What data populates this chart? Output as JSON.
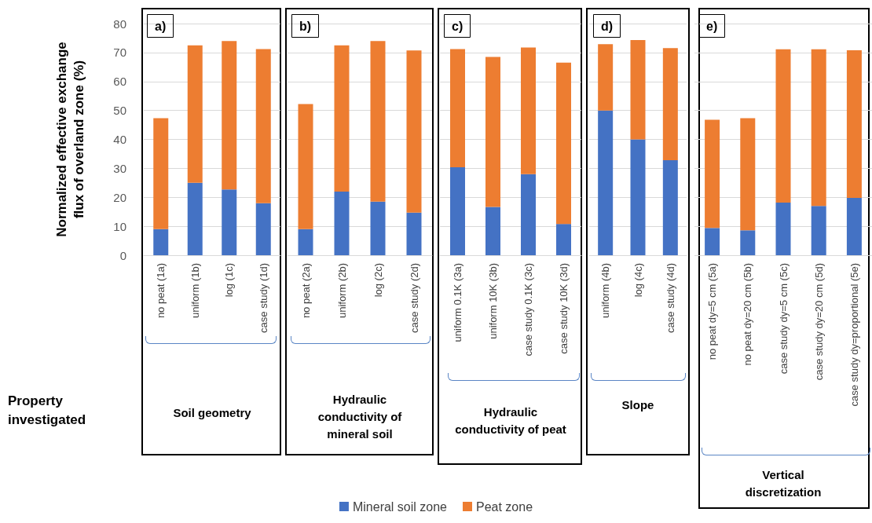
{
  "chart_data": [
    {
      "type": "bar",
      "title": "a)",
      "xlabel": "Soil geometry",
      "ylabel": "Normalized effective exchange flux of overland zone (%)",
      "categories": [
        "no peat (1a)",
        "uniform (1b)",
        "log (1c)",
        "case study (1d)"
      ],
      "stacked": true,
      "ylim": [
        0,
        80
      ],
      "yticks": [
        0,
        10,
        20,
        30,
        40,
        50,
        60,
        70,
        80
      ],
      "grid": "y",
      "legend": "bottom",
      "annotations": [
        "Property investigated"
      ],
      "series": [
        {
          "name": "Mineral soil zone",
          "color": "#4472c4",
          "values": [
            9,
            25,
            22.7,
            18
          ]
        },
        {
          "name": "Peat zone",
          "color": "#ed7d31",
          "values": [
            38.3,
            47.5,
            51.3,
            53.2
          ]
        }
      ]
    },
    {
      "type": "bar",
      "title": "b)",
      "xlabel": "Hydraulic conductivity of mineral soil",
      "categories": [
        "no peat (2a)",
        "uniform (2b)",
        "log (2c)",
        "case study (2d)"
      ],
      "stacked": true,
      "ylim": [
        0,
        80
      ],
      "yticks": [
        0,
        10,
        20,
        30,
        40,
        50,
        60,
        70,
        80
      ],
      "grid": "y",
      "tick_labels": "x",
      "series": [
        {
          "color": "#4472c4",
          "values": [
            9,
            22,
            18.5,
            14.7
          ]
        },
        {
          "color": "#ed7d31",
          "values": [
            43.2,
            50.5,
            55.5,
            56
          ]
        }
      ]
    },
    {
      "type": "bar",
      "title": "c)",
      "xlabel": "Hydraulic conductivity of peat",
      "categories": [
        "uniform 0.1K (3a)",
        "uniform 10K (3b)",
        "case study 0.1K (3c)",
        "case study 10K (3d)"
      ],
      "stacked": true,
      "ylim": [
        0,
        80
      ],
      "yticks": [
        0,
        10,
        20,
        30,
        40,
        50,
        60,
        70,
        80
      ],
      "grid": "y",
      "tick_labels": "x",
      "series": [
        {
          "color": "#4472c4",
          "values": [
            30.4,
            16.7,
            28,
            10.8
          ]
        },
        {
          "color": "#ed7d31",
          "values": [
            40.8,
            51.8,
            43.7,
            55.7
          ]
        }
      ]
    },
    {
      "type": "bar",
      "title": "d)",
      "xlabel": "Slope",
      "categories": [
        "uniform (4b)",
        "log (4c)",
        "case study (4d)"
      ],
      "stacked": true,
      "ylim": [
        0,
        80
      ],
      "yticks": [
        0,
        10,
        20,
        30,
        40,
        50,
        60,
        70,
        80
      ],
      "grid": "y",
      "tick_labels": "x",
      "series": [
        {
          "color": "#4472c4",
          "values": [
            50,
            40,
            32.8
          ]
        },
        {
          "color": "#ed7d31",
          "values": [
            22.9,
            34.3,
            38.7
          ]
        }
      ]
    },
    {
      "type": "bar",
      "title": "e)",
      "xlabel": "Vertical discretization",
      "categories": [
        "no peat dy=5 cm (5a)",
        "no peat dy=20 cm (5b)",
        "case study dy=5 cm (5c)",
        "case study dy=20 cm (5d)",
        "case study dy=proportional (5e)"
      ],
      "stacked": true,
      "ylim": [
        0,
        80
      ],
      "yticks": [
        0,
        10,
        20,
        30,
        40,
        50,
        60,
        70,
        80
      ],
      "grid": "y",
      "tick_labels": "x",
      "series": [
        {
          "color": "#4472c4",
          "values": [
            9.4,
            8.6,
            18.2,
            17,
            19.8
          ]
        },
        {
          "color": "#ed7d31",
          "values": [
            37.4,
            38.7,
            52.9,
            54.1,
            51
          ]
        }
      ]
    }
  ]
}
